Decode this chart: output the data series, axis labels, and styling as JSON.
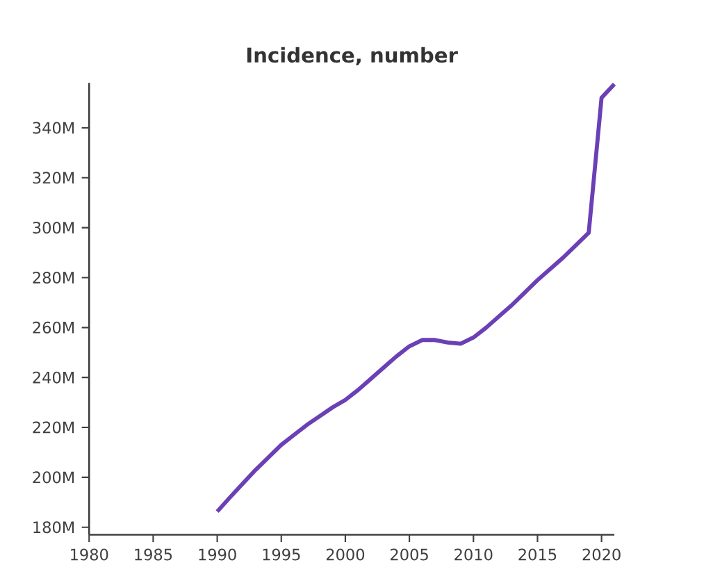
{
  "chart_data": {
    "type": "line",
    "title": "Incidence, number",
    "x": [
      1990,
      1991,
      1992,
      1993,
      1994,
      1995,
      1996,
      1997,
      1998,
      1999,
      2000,
      2001,
      2002,
      2003,
      2004,
      2005,
      2006,
      2007,
      2008,
      2009,
      2010,
      2011,
      2012,
      2013,
      2014,
      2015,
      2016,
      2017,
      2018,
      2019,
      2020,
      2021
    ],
    "series": [
      {
        "color": "#6b3fb5",
        "values": [
          186.3,
          192,
          197.5,
          203,
          208,
          213,
          217,
          221,
          224.5,
          228,
          231,
          235,
          239.5,
          244,
          248.5,
          252.5,
          255,
          255,
          254,
          253.5,
          256,
          260,
          264.5,
          269,
          274,
          279,
          283.5,
          288,
          293,
          298,
          352,
          357.5
        ]
      }
    ],
    "xlim": [
      1980,
      2021
    ],
    "xticks": [
      1980,
      1985,
      1990,
      1995,
      2000,
      2005,
      2010,
      2015,
      2020
    ],
    "ylim": [
      177,
      358
    ],
    "yticks": [
      {
        "value": 180,
        "label": "180M"
      },
      {
        "value": 200,
        "label": "200M"
      },
      {
        "value": 220,
        "label": "220M"
      },
      {
        "value": 240,
        "label": "240M"
      },
      {
        "value": 260,
        "label": "260M"
      },
      {
        "value": 280,
        "label": "280M"
      },
      {
        "value": 300,
        "label": "300M"
      },
      {
        "value": 320,
        "label": "320M"
      },
      {
        "value": 340,
        "label": "340M"
      }
    ],
    "grid": false,
    "marker": "none",
    "line_style": "solid"
  }
}
